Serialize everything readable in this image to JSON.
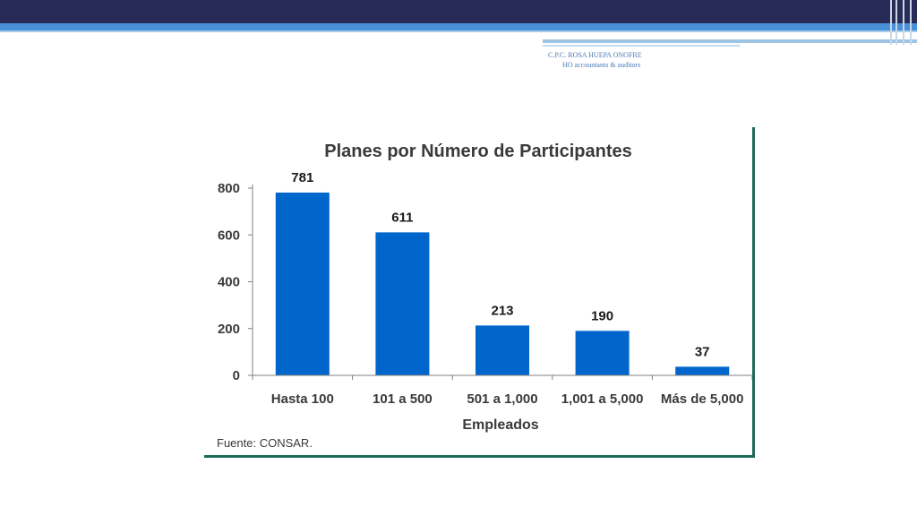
{
  "header": {
    "line1": "C.P.C. ROSA HUEPA ONOFRE",
    "line2": "HO accountants & auditors"
  },
  "chart_data": {
    "type": "bar",
    "title": "Planes por Número de Participantes",
    "categories": [
      "Hasta 100",
      "101 a 500",
      "501 a 1,000",
      "1,001 a 5,000",
      "Más de 5,000"
    ],
    "values": [
      781,
      611,
      213,
      190,
      37
    ],
    "xlabel": "Empleados",
    "ylabel": "",
    "ylim": [
      0,
      800
    ],
    "yticks": [
      0,
      200,
      400,
      600,
      800
    ],
    "bar_color": "#0066cc",
    "grid": false,
    "source": "Fuente: CONSAR."
  }
}
